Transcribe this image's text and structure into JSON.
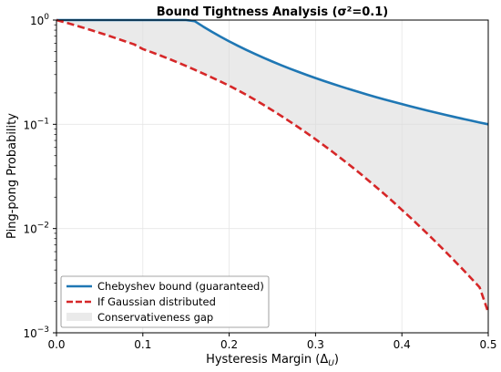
{
  "chart_data": {
    "type": "line",
    "title": "Bound Tightness Analysis (σ²=0.1)",
    "xlabel": "Hysteresis Margin (Δ",
    "xlabel_sub": "U",
    "xlabel_close": ")",
    "ylabel": "Ping-pong Probability",
    "xlim": [
      0.0,
      0.5
    ],
    "ylim": [
      0.001,
      1
    ],
    "yscale": "log",
    "grid": true,
    "legend_position": "lower-left",
    "x_ticks": [
      0.0,
      0.1,
      0.2,
      0.3,
      0.4,
      0.5
    ],
    "x_tick_labels": [
      "0.0",
      "0.1",
      "0.2",
      "0.3",
      "0.4",
      "0.5"
    ],
    "y_ticks": [
      1,
      0.1,
      0.01,
      0.001
    ],
    "y_tick_labels": [
      {
        "base": "10",
        "exp": "0"
      },
      {
        "base": "10",
        "exp": "−1"
      },
      {
        "base": "10",
        "exp": "−2"
      },
      {
        "base": "10",
        "exp": "−3"
      }
    ],
    "x": [
      0.0,
      0.01,
      0.02,
      0.03,
      0.04,
      0.05,
      0.06,
      0.07,
      0.08,
      0.09,
      0.1,
      0.11,
      0.12,
      0.13,
      0.14,
      0.15,
      0.16,
      0.17,
      0.18,
      0.19,
      0.2,
      0.21,
      0.22,
      0.23,
      0.24,
      0.25,
      0.26,
      0.27,
      0.28,
      0.29,
      0.3,
      0.31,
      0.32,
      0.33,
      0.34,
      0.35,
      0.36,
      0.37,
      0.38,
      0.39,
      0.4,
      0.41,
      0.42,
      0.43,
      0.44,
      0.45,
      0.46,
      0.47,
      0.48,
      0.49,
      0.5
    ],
    "series": [
      {
        "name": "Chebyshev bound (guaranteed)",
        "color": "#1f77b4",
        "style": "solid",
        "values": [
          1,
          1,
          1,
          1,
          1,
          1,
          1,
          1,
          1,
          1,
          1,
          1,
          1,
          1,
          1,
          1,
          0.9766,
          0.8651,
          0.7716,
          0.6925,
          0.625,
          0.5669,
          0.5165,
          0.4726,
          0.434,
          0.4,
          0.3698,
          0.3429,
          0.3189,
          0.2973,
          0.2778,
          0.2601,
          0.2441,
          0.2296,
          0.2163,
          0.2041,
          0.1929,
          0.1826,
          0.1731,
          0.1644,
          0.1563,
          0.1487,
          0.1417,
          0.1352,
          0.1291,
          0.1235,
          0.1181,
          0.1132,
          0.1085,
          0.1041,
          0.1
        ]
      },
      {
        "name": "If Gaussian distributed",
        "color": "#d62728",
        "style": "dashed",
        "values": [
          1.0,
          0.9495,
          0.8992,
          0.8497,
          0.8012,
          0.7541,
          0.7086,
          0.665,
          0.6234,
          0.5841,
          0.5271,
          0.4921,
          0.4581,
          0.4252,
          0.3934,
          0.3628,
          0.3338,
          0.3065,
          0.281,
          0.2571,
          0.2345,
          0.2124,
          0.1913,
          0.1715,
          0.1531,
          0.1362,
          0.1207,
          0.1066,
          0.0938,
          0.0823,
          0.0719,
          0.0625,
          0.0542,
          0.0468,
          0.0403,
          0.0346,
          0.0295,
          0.0251,
          0.0213,
          0.018,
          0.0151,
          0.0127,
          0.0106,
          0.00884,
          0.00733,
          0.00606,
          0.00499,
          0.0041,
          0.00335,
          0.00273,
          0.00157
        ]
      }
    ],
    "fill": {
      "name": "Conservativeness gap",
      "color": "#d9d9d9",
      "opacity": 0.55,
      "between": [
        "Chebyshev bound (guaranteed)",
        "If Gaussian distributed"
      ]
    }
  }
}
